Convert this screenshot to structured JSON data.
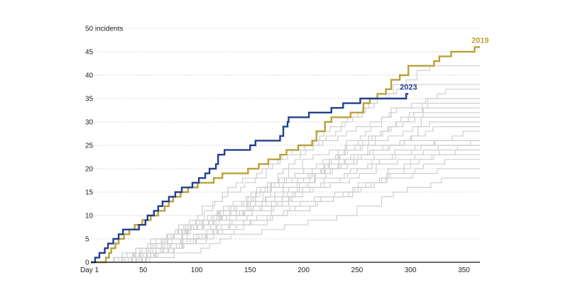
{
  "chart_data": {
    "type": "line",
    "step": true,
    "xlim": [
      1,
      365
    ],
    "ylim": [
      0,
      50
    ],
    "x_ticks": [
      {
        "value": 1,
        "label": "Day 1"
      },
      {
        "value": 50,
        "label": "50"
      },
      {
        "value": 100,
        "label": "100"
      },
      {
        "value": 150,
        "label": "150"
      },
      {
        "value": 200,
        "label": "200"
      },
      {
        "value": 250,
        "label": "250"
      },
      {
        "value": 300,
        "label": "300"
      },
      {
        "value": 350,
        "label": "350"
      }
    ],
    "y_ticks": [
      {
        "value": 0,
        "label": "0"
      },
      {
        "value": 5,
        "label": "5"
      },
      {
        "value": 10,
        "label": "10"
      },
      {
        "value": 15,
        "label": "15"
      },
      {
        "value": 20,
        "label": "20"
      },
      {
        "value": 25,
        "label": "25"
      },
      {
        "value": 30,
        "label": "30"
      },
      {
        "value": 35,
        "label": "35"
      },
      {
        "value": 40,
        "label": "40"
      },
      {
        "value": 45,
        "label": "45"
      },
      {
        "value": 50,
        "label": "50 incidents"
      }
    ],
    "grid": "horizontal dotted",
    "colors": {
      "highlight_2023": "#23408e",
      "highlight_2019": "#b8a23a",
      "background": "#cfcfcf",
      "axis": "#111111"
    },
    "highlight_series": [
      {
        "name": "2019",
        "color": "#b8a23a",
        "label_position": "end-above",
        "points": [
          [
            1,
            0
          ],
          [
            12,
            0
          ],
          [
            15,
            1
          ],
          [
            18,
            2
          ],
          [
            20,
            3
          ],
          [
            24,
            4
          ],
          [
            27,
            5
          ],
          [
            32,
            6
          ],
          [
            37,
            7
          ],
          [
            42,
            8
          ],
          [
            46,
            8
          ],
          [
            49,
            9
          ],
          [
            57,
            10
          ],
          [
            64,
            11
          ],
          [
            70,
            12
          ],
          [
            74,
            13
          ],
          [
            78,
            14
          ],
          [
            85,
            15
          ],
          [
            92,
            16
          ],
          [
            101,
            17
          ],
          [
            116,
            18
          ],
          [
            124,
            19
          ],
          [
            145,
            19
          ],
          [
            148,
            20
          ],
          [
            158,
            21
          ],
          [
            167,
            22
          ],
          [
            178,
            23
          ],
          [
            184,
            24
          ],
          [
            195,
            25
          ],
          [
            208,
            26
          ],
          [
            212,
            28
          ],
          [
            220,
            30
          ],
          [
            226,
            31
          ],
          [
            244,
            32
          ],
          [
            256,
            34
          ],
          [
            262,
            35
          ],
          [
            269,
            36
          ],
          [
            277,
            37
          ],
          [
            282,
            39
          ],
          [
            290,
            40
          ],
          [
            298,
            42
          ],
          [
            322,
            43
          ],
          [
            327,
            44
          ],
          [
            338,
            45
          ],
          [
            360,
            46
          ],
          [
            365,
            46
          ]
        ]
      },
      {
        "name": "2023",
        "color": "#23408e",
        "label_position": "end-above",
        "points": [
          [
            1,
            0
          ],
          [
            5,
            1
          ],
          [
            9,
            2
          ],
          [
            14,
            3
          ],
          [
            17,
            4
          ],
          [
            22,
            5
          ],
          [
            27,
            6
          ],
          [
            31,
            7
          ],
          [
            42,
            7
          ],
          [
            46,
            8
          ],
          [
            52,
            9
          ],
          [
            54,
            10
          ],
          [
            60,
            11
          ],
          [
            64,
            12
          ],
          [
            68,
            13
          ],
          [
            74,
            14
          ],
          [
            80,
            15
          ],
          [
            86,
            16
          ],
          [
            96,
            17
          ],
          [
            102,
            18
          ],
          [
            108,
            19
          ],
          [
            112,
            20
          ],
          [
            118,
            21
          ],
          [
            120,
            23
          ],
          [
            126,
            24
          ],
          [
            150,
            25
          ],
          [
            155,
            26
          ],
          [
            178,
            27
          ],
          [
            181,
            29
          ],
          [
            185,
            30
          ],
          [
            186,
            31
          ],
          [
            205,
            32
          ],
          [
            226,
            33
          ],
          [
            237,
            34
          ],
          [
            253,
            35
          ],
          [
            262,
            35
          ],
          [
            294,
            35
          ],
          [
            296,
            36
          ],
          [
            298,
            36
          ]
        ]
      }
    ],
    "background_series_count": 21
  }
}
